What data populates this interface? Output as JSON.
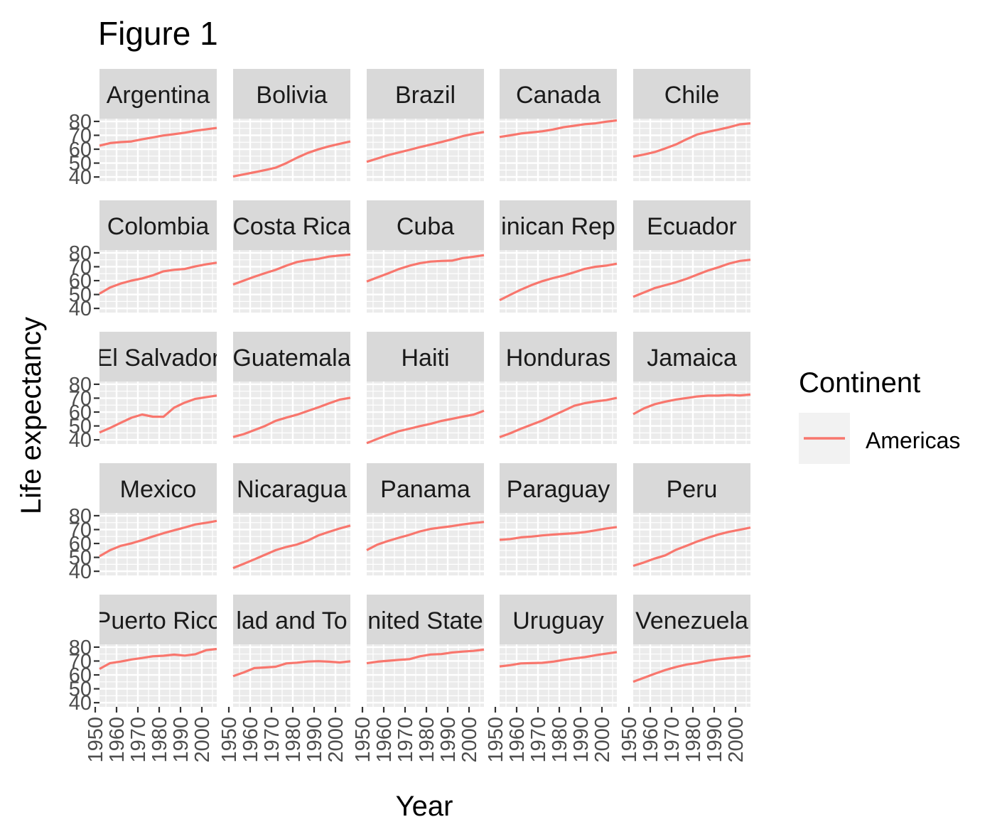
{
  "chart_data": {
    "type": "line",
    "title": "Figure 1",
    "xlabel": "Year",
    "ylabel": "Life expectancy",
    "facet_layout": "5x5 grid",
    "x_ticks": [
      "1950",
      "1960",
      "1970",
      "1980",
      "1990",
      "2000"
    ],
    "y_ticks": [
      "40",
      "50",
      "60",
      "70",
      "80"
    ],
    "xlim": [
      1952,
      2007
    ],
    "ylim": [
      37,
      82
    ],
    "grid": true,
    "legend": {
      "title": "Continent",
      "placement": "right",
      "entries": [
        {
          "label": "Americas",
          "color": "#F8766D"
        }
      ]
    },
    "colors": {
      "line": "#F8766D",
      "panel_bg": "#EBEBEB",
      "strip_bg": "#D9D9D9",
      "gridline": "#FFFFFF",
      "tick": "#333333"
    },
    "x": [
      1952,
      1957,
      1962,
      1967,
      1972,
      1977,
      1982,
      1987,
      1992,
      1997,
      2002,
      2007
    ],
    "series": [
      {
        "name": "Argentina",
        "strip_label": "Argentina",
        "values": [
          62.5,
          64.4,
          65.1,
          65.6,
          67.1,
          68.5,
          69.9,
          70.8,
          71.9,
          73.3,
          74.3,
          75.3
        ]
      },
      {
        "name": "Bolivia",
        "strip_label": "Bolivia",
        "values": [
          40.4,
          41.9,
          43.4,
          45.0,
          46.7,
          50.0,
          53.9,
          57.3,
          59.9,
          62.1,
          63.9,
          65.6
        ]
      },
      {
        "name": "Brazil",
        "strip_label": "Brazil",
        "values": [
          50.9,
          53.3,
          55.7,
          57.6,
          59.5,
          61.5,
          63.3,
          65.2,
          67.1,
          69.4,
          71.0,
          72.4
        ]
      },
      {
        "name": "Canada",
        "strip_label": "Canada",
        "values": [
          68.8,
          70.0,
          71.3,
          72.1,
          72.9,
          74.2,
          75.8,
          76.9,
          78.0,
          78.6,
          79.8,
          80.7
        ]
      },
      {
        "name": "Chile",
        "strip_label": "Chile",
        "values": [
          54.7,
          56.1,
          57.9,
          60.5,
          63.4,
          67.1,
          70.6,
          72.5,
          74.1,
          75.8,
          77.9,
          78.6
        ]
      },
      {
        "name": "Colombia",
        "strip_label": "Colombia",
        "values": [
          50.6,
          55.1,
          57.9,
          60.0,
          61.6,
          63.8,
          66.7,
          67.8,
          68.4,
          70.3,
          71.7,
          72.9
        ]
      },
      {
        "name": "Costa Rica",
        "strip_label": "Costa Rica",
        "values": [
          57.2,
          60.0,
          62.8,
          65.4,
          67.8,
          70.8,
          73.4,
          74.8,
          75.7,
          77.3,
          78.1,
          78.8
        ]
      },
      {
        "name": "Cuba",
        "strip_label": "Cuba",
        "values": [
          59.4,
          62.3,
          65.2,
          68.3,
          70.7,
          72.6,
          73.7,
          74.2,
          74.4,
          76.2,
          77.2,
          78.3
        ]
      },
      {
        "name": "Dominican Republic",
        "strip_label": "inican Rep",
        "values": [
          45.9,
          49.8,
          53.5,
          56.8,
          59.6,
          61.8,
          63.7,
          66.0,
          68.5,
          70.0,
          70.8,
          72.2
        ]
      },
      {
        "name": "Ecuador",
        "strip_label": "Ecuador",
        "values": [
          48.4,
          51.4,
          54.6,
          56.7,
          58.8,
          61.3,
          64.3,
          67.2,
          69.6,
          72.3,
          74.2,
          75.0
        ]
      },
      {
        "name": "El Salvador",
        "strip_label": "El Salvador",
        "values": [
          45.3,
          48.6,
          52.3,
          55.9,
          58.2,
          56.7,
          56.6,
          63.2,
          66.8,
          69.5,
          70.7,
          71.9
        ]
      },
      {
        "name": "Guatemala",
        "strip_label": "Guatemala",
        "values": [
          42.0,
          44.1,
          47.0,
          50.0,
          53.7,
          56.0,
          58.1,
          60.8,
          63.4,
          66.3,
          68.98,
          70.3
        ]
      },
      {
        "name": "Haiti",
        "strip_label": "Haiti",
        "values": [
          37.6,
          40.7,
          43.6,
          46.2,
          48.0,
          49.9,
          51.5,
          53.6,
          55.1,
          56.7,
          58.1,
          60.9
        ]
      },
      {
        "name": "Honduras",
        "strip_label": "Honduras",
        "values": [
          41.9,
          44.7,
          48.0,
          50.9,
          53.9,
          57.4,
          60.9,
          64.5,
          66.4,
          67.7,
          68.6,
          70.2
        ]
      },
      {
        "name": "Jamaica",
        "strip_label": "Jamaica",
        "values": [
          58.5,
          62.6,
          65.6,
          67.5,
          69.0,
          70.1,
          71.2,
          71.8,
          71.8,
          72.3,
          72.0,
          72.6
        ]
      },
      {
        "name": "Mexico",
        "strip_label": "Mexico",
        "values": [
          50.8,
          55.2,
          58.3,
          60.1,
          62.4,
          65.0,
          67.4,
          69.5,
          71.5,
          73.7,
          74.9,
          76.2
        ]
      },
      {
        "name": "Nicaragua",
        "strip_label": "Nicaragua",
        "values": [
          42.3,
          45.4,
          48.6,
          51.9,
          55.2,
          57.5,
          59.3,
          62.0,
          65.8,
          68.4,
          70.8,
          72.9
        ]
      },
      {
        "name": "Panama",
        "strip_label": "Panama",
        "values": [
          55.2,
          59.2,
          61.8,
          64.1,
          66.2,
          68.7,
          70.5,
          71.5,
          72.5,
          73.7,
          74.7,
          75.5
        ]
      },
      {
        "name": "Paraguay",
        "strip_label": "Paraguay",
        "values": [
          62.6,
          63.2,
          64.4,
          64.95,
          65.8,
          66.4,
          66.9,
          67.4,
          68.2,
          69.4,
          70.8,
          71.8
        ]
      },
      {
        "name": "Peru",
        "strip_label": "Peru",
        "values": [
          43.9,
          46.3,
          49.1,
          51.4,
          55.4,
          58.4,
          61.4,
          64.1,
          66.5,
          68.4,
          69.9,
          71.4
        ]
      },
      {
        "name": "Puerto Rico",
        "strip_label": "Puerto Rico",
        "values": [
          64.3,
          68.5,
          69.6,
          71.1,
          72.2,
          73.4,
          73.8,
          74.6,
          73.9,
          74.9,
          77.8,
          78.7
        ]
      },
      {
        "name": "Trinidad and Tobago",
        "strip_label": "lad and To",
        "values": [
          59.1,
          61.8,
          64.9,
          65.4,
          65.9,
          68.3,
          68.8,
          69.6,
          69.9,
          69.5,
          68.98,
          69.8
        ]
      },
      {
        "name": "United States",
        "strip_label": "nited State",
        "values": [
          68.4,
          69.5,
          70.2,
          70.8,
          71.3,
          73.4,
          74.7,
          75.0,
          76.1,
          76.8,
          77.3,
          78.2
        ]
      },
      {
        "name": "Uruguay",
        "strip_label": "Uruguay",
        "values": [
          66.1,
          67.0,
          68.3,
          68.5,
          68.7,
          69.5,
          70.8,
          71.9,
          72.8,
          74.2,
          75.3,
          76.4
        ]
      },
      {
        "name": "Venezuela",
        "strip_label": "Venezuela",
        "values": [
          55.1,
          57.9,
          60.8,
          63.5,
          65.7,
          67.5,
          68.6,
          70.2,
          71.2,
          72.1,
          72.8,
          73.7
        ]
      }
    ]
  }
}
